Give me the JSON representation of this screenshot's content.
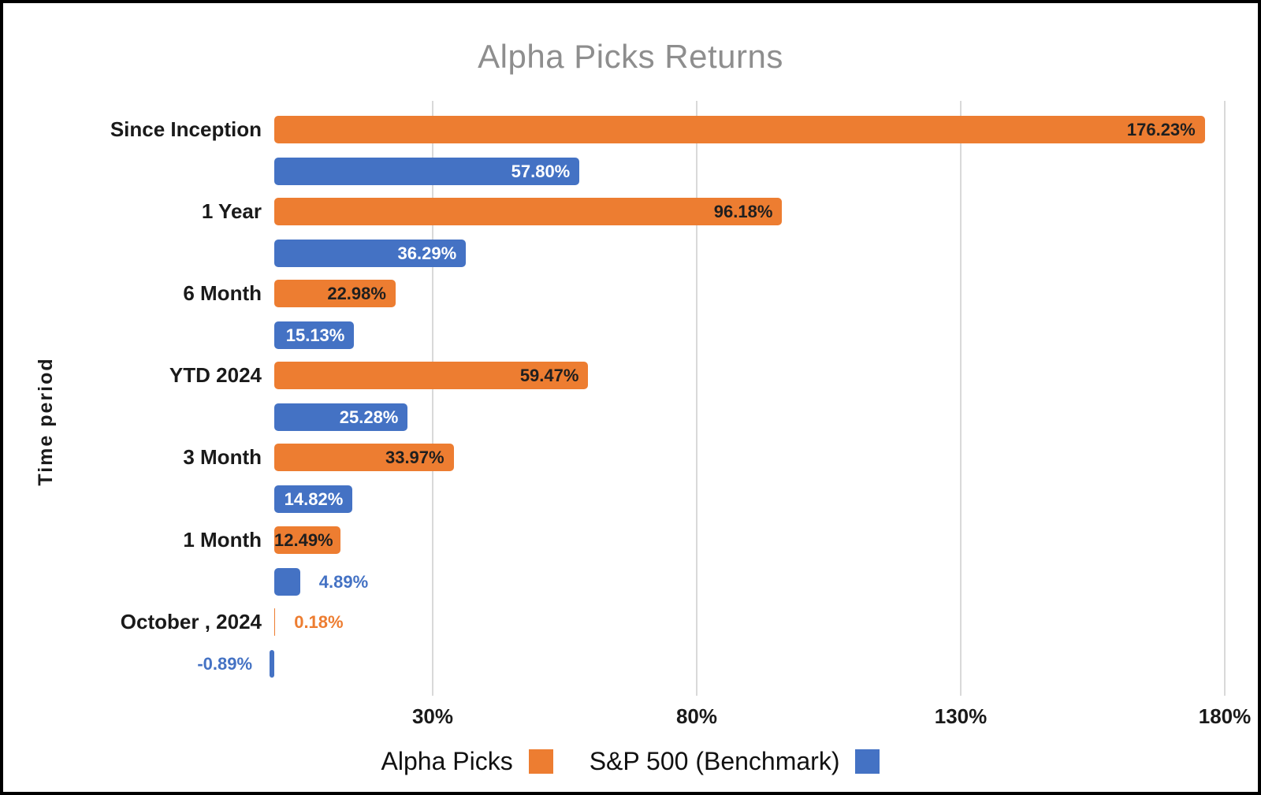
{
  "chart_data": {
    "type": "bar",
    "orientation": "horizontal",
    "title": "Alpha Picks Returns",
    "xlabel": "",
    "ylabel": "Time period",
    "categories": [
      "Since Inception",
      "1 Year",
      "6 Month",
      "YTD 2024",
      "3 Month",
      "1 Month",
      "October , 2024"
    ],
    "series": [
      {
        "name": "Alpha Picks",
        "color": "#ED7D31",
        "inside_label_color": "#1f1f1f",
        "values": [
          176.23,
          96.18,
          22.98,
          59.47,
          33.97,
          12.49,
          0.18
        ],
        "labels": [
          "176.23%",
          "96.18%",
          "22.98%",
          "59.47%",
          "33.97%",
          "12.49%",
          "0.18%"
        ]
      },
      {
        "name": "S&P 500 (Benchmark)",
        "color": "#4472C4",
        "inside_label_color": "#ffffff",
        "values": [
          57.8,
          36.29,
          15.13,
          25.28,
          14.82,
          4.89,
          -0.89
        ],
        "labels": [
          "57.80%",
          "36.29%",
          "15.13%",
          "25.28%",
          "14.82%",
          "4.89%",
          "-0.89%"
        ]
      }
    ],
    "x_ticks": [
      {
        "label": "30%",
        "value": 30
      },
      {
        "label": "80%",
        "value": 80
      },
      {
        "label": "130%",
        "value": 130
      },
      {
        "label": "180%",
        "value": 180
      }
    ],
    "xlim": [
      0,
      180
    ],
    "grid": true,
    "legend_position": "bottom",
    "title_color": "#8e8e8e",
    "gridline_color": "#d9d9d9"
  }
}
